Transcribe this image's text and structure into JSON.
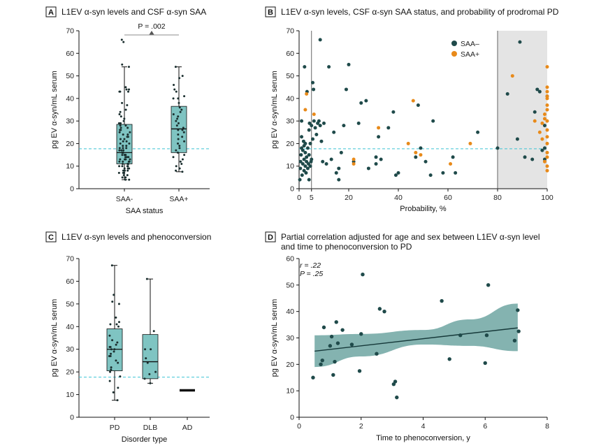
{
  "colors": {
    "box_fill": "#7fc4c2",
    "dark_dot": "#1f4a4a",
    "orange_dot": "#e88a1a",
    "threshold_line": "#3cc4d4",
    "shade": "#e4e4e4",
    "ci_band": "#6fa6a2"
  },
  "panels": [
    {
      "letter": "A",
      "title": "L1EV α-syn levels and CSF α-syn SAA"
    },
    {
      "letter": "B",
      "title": "L1EV α-syn levels, CSF α-syn SAA status, and probability of prodromal PD"
    },
    {
      "letter": "C",
      "title": "L1EV α-syn levels and phenoconversion"
    },
    {
      "letter": "D",
      "title_lines": [
        "Partial correlation adjusted for age and sex between L1EV α-syn level",
        "and time to phenoconversion to PD"
      ]
    }
  ],
  "chart_data": [
    {
      "id": "A",
      "type": "box",
      "title": "L1EV α-syn levels and CSF α-syn SAA",
      "xlabel": "SAA status",
      "ylabel": "pg EV α-syn/mL serum",
      "ylim": [
        0,
        70
      ],
      "yticks": [
        0,
        10,
        20,
        30,
        40,
        50,
        60,
        70
      ],
      "threshold": 17.7,
      "p_label": "P = .002",
      "categories": [
        "SAA-",
        "SAA+"
      ],
      "boxes": [
        {
          "category": "SAA-",
          "min": 4,
          "q1": 11,
          "median": 16,
          "q3": 28.5,
          "max": 54
        },
        {
          "category": "SAA+",
          "min": 7.5,
          "q1": 16,
          "median": 26.5,
          "q3": 36.5,
          "max": 54
        }
      ],
      "points": [
        {
          "category": "SAA-",
          "values": [
            66,
            65,
            55,
            54,
            45,
            44,
            44,
            43,
            43,
            43,
            38,
            37,
            35,
            34,
            33,
            32,
            31,
            30,
            29,
            29,
            28,
            28,
            27,
            27,
            26,
            26,
            25,
            25,
            24,
            24,
            23,
            23,
            22,
            22,
            21,
            21,
            20,
            20,
            19,
            19,
            18,
            18,
            18,
            17,
            17,
            17,
            16,
            16,
            16,
            15,
            15,
            15,
            15,
            14,
            14,
            14,
            13,
            13,
            13,
            13,
            12,
            12,
            12,
            12,
            11,
            11,
            11,
            11,
            10,
            10,
            10,
            10,
            9,
            9,
            9,
            8,
            8,
            8,
            7,
            7,
            7,
            6,
            6,
            5,
            5,
            4,
            4
          ]
        },
        {
          "category": "SAA+",
          "values": [
            54,
            50,
            49,
            46,
            44,
            43,
            41,
            40,
            40,
            38,
            36,
            35,
            34,
            33,
            32,
            31,
            30,
            29,
            28,
            27,
            26,
            26,
            25,
            24,
            23,
            22,
            21,
            20,
            19,
            18,
            17,
            16,
            15,
            14,
            13,
            12,
            11,
            10,
            9,
            8,
            7.5
          ]
        }
      ]
    },
    {
      "id": "B",
      "type": "scatter",
      "title": "L1EV α-syn levels, CSF α-syn SAA status, and probability of prodromal PD",
      "xlabel": "Probability, %",
      "ylabel": "pg EV α-syn/mL serum",
      "xlim": [
        0,
        100
      ],
      "ylim": [
        0,
        70
      ],
      "xticks": [
        0,
        5,
        20,
        40,
        60,
        80,
        100
      ],
      "yticks": [
        0,
        10,
        20,
        30,
        40,
        50,
        60,
        70
      ],
      "vlines": [
        5,
        80
      ],
      "shaded_range": [
        80,
        100
      ],
      "threshold": 17.7,
      "legend": [
        {
          "name": "SAA–",
          "color": "#1f4a4a"
        },
        {
          "name": "SAA+",
          "color": "#e88a1a"
        }
      ],
      "series": [
        {
          "name": "SAA–",
          "points": [
            [
              0.3,
              4
            ],
            [
              0.5,
              9
            ],
            [
              0.6,
              12
            ],
            [
              0.8,
              15
            ],
            [
              1,
              18
            ],
            [
              1,
              23
            ],
            [
              1,
              30
            ],
            [
              1.2,
              6
            ],
            [
              1.5,
              11
            ],
            [
              1.5,
              17
            ],
            [
              1.8,
              21
            ],
            [
              2,
              8
            ],
            [
              2,
              13
            ],
            [
              2,
              19
            ],
            [
              2.2,
              54
            ],
            [
              2.5,
              10
            ],
            [
              2.5,
              16
            ],
            [
              2.5,
              20
            ],
            [
              2.8,
              7
            ],
            [
              3,
              12
            ],
            [
              3,
              14
            ],
            [
              3.2,
              43
            ],
            [
              3.5,
              9
            ],
            [
              3.5,
              18
            ],
            [
              3.8,
              11
            ],
            [
              4,
              26
            ],
            [
              4,
              15
            ],
            [
              4,
              4
            ],
            [
              4.2,
              29
            ],
            [
              4.5,
              10
            ],
            [
              4.5,
              20
            ],
            [
              4.8,
              12
            ],
            [
              5,
              13
            ],
            [
              5,
              28
            ],
            [
              5.5,
              22
            ],
            [
              5.5,
              47
            ],
            [
              5.8,
              44
            ],
            [
              6,
              30
            ],
            [
              6.5,
              27
            ],
            [
              7,
              24
            ],
            [
              7.5,
              29
            ],
            [
              8,
              30
            ],
            [
              8.5,
              28
            ],
            [
              8.5,
              66
            ],
            [
              9,
              21
            ],
            [
              9.5,
              12
            ],
            [
              10,
              29
            ],
            [
              11,
              11
            ],
            [
              12,
              54
            ],
            [
              13,
              13
            ],
            [
              14,
              25
            ],
            [
              15,
              7
            ],
            [
              16,
              4
            ],
            [
              16,
              9
            ],
            [
              17,
              16
            ],
            [
              18,
              28
            ],
            [
              19,
              44
            ],
            [
              20,
              55
            ],
            [
              22,
              12
            ],
            [
              24,
              29
            ],
            [
              25,
              38
            ],
            [
              27,
              39
            ],
            [
              28,
              9
            ],
            [
              31,
              14
            ],
            [
              31,
              11
            ],
            [
              32,
              23
            ],
            [
              33,
              13
            ],
            [
              36,
              27
            ],
            [
              38,
              34
            ],
            [
              39,
              6
            ],
            [
              40,
              7
            ],
            [
              47,
              14
            ],
            [
              48,
              37
            ],
            [
              49,
              18
            ],
            [
              51,
              12
            ],
            [
              53,
              6
            ],
            [
              54,
              30
            ],
            [
              58,
              7
            ],
            [
              62,
              14
            ],
            [
              63,
              7
            ],
            [
              72,
              25
            ],
            [
              80,
              18
            ],
            [
              84,
              42
            ],
            [
              88,
              22
            ],
            [
              89,
              65
            ],
            [
              91,
              14
            ],
            [
              94,
              13
            ],
            [
              95,
              34
            ],
            [
              96,
              44
            ],
            [
              97,
              43
            ],
            [
              98,
              17
            ],
            [
              99,
              13
            ],
            [
              99,
              18
            ],
            [
              99,
              28
            ],
            [
              100,
              41
            ]
          ]
        },
        {
          "name": "SAA+",
          "points": [
            [
              2.5,
              35
            ],
            [
              3,
              42
            ],
            [
              6,
              33
            ],
            [
              22,
              13
            ],
            [
              22,
              11
            ],
            [
              32,
              27
            ],
            [
              44,
              20
            ],
            [
              46,
              39
            ],
            [
              47,
              16
            ],
            [
              49,
              15
            ],
            [
              61,
              11
            ],
            [
              69,
              20
            ],
            [
              86,
              50
            ],
            [
              95,
              30
            ],
            [
              97,
              25
            ],
            [
              98,
              22
            ],
            [
              98,
              29
            ],
            [
              99,
              12
            ],
            [
              99,
              31
            ],
            [
              99,
              33
            ],
            [
              100,
              8
            ],
            [
              100,
              10
            ],
            [
              100,
              14
            ],
            [
              100,
              16
            ],
            [
              100,
              20
            ],
            [
              100,
              23
            ],
            [
              100,
              26
            ],
            [
              100,
              30
            ],
            [
              100,
              35
            ],
            [
              100,
              37
            ],
            [
              100,
              40
            ],
            [
              100,
              41
            ],
            [
              100,
              43
            ],
            [
              100,
              45
            ],
            [
              100,
              54
            ]
          ]
        }
      ]
    },
    {
      "id": "C",
      "type": "box",
      "title": "L1EV α-syn levels and phenoconversion",
      "xlabel": "Disorder type",
      "ylabel": "pg EV α-syn/mL serum",
      "ylim": [
        0,
        70
      ],
      "yticks": [
        0,
        10,
        20,
        30,
        40,
        50,
        60,
        70
      ],
      "threshold": 17.7,
      "categories": [
        "PD",
        "DLB",
        "AD"
      ],
      "boxes": [
        {
          "category": "PD",
          "min": 7.5,
          "q1": 20.5,
          "median": 30,
          "q3": 39,
          "max": 67
        },
        {
          "category": "DLB",
          "min": 15,
          "q1": 17,
          "median": 24.5,
          "q3": 36.5,
          "max": 61
        },
        {
          "category": "AD",
          "min": 11.8,
          "q1": 11.8,
          "median": 11.8,
          "q3": 11.8,
          "max": 11.8
        }
      ],
      "points": [
        {
          "category": "PD",
          "values": [
            67,
            54,
            51,
            50,
            44,
            42,
            41,
            41,
            40,
            36,
            34,
            33,
            32,
            31,
            31,
            30,
            30,
            29,
            28,
            27,
            27,
            25,
            24,
            22,
            21,
            20,
            18,
            16,
            13,
            11,
            7.5
          ]
        },
        {
          "category": "DLB",
          "values": [
            61,
            38,
            30,
            30,
            26,
            24,
            20,
            19,
            17,
            15
          ]
        },
        {
          "category": "AD",
          "values": [
            11.8
          ]
        }
      ]
    },
    {
      "id": "D",
      "type": "scatter",
      "title": "Partial correlation adjusted for age and sex between L1EV α-syn level and time to phenoconversion to PD",
      "xlabel": "Time to phenoconversion, y",
      "ylabel": "pg EV α-syn/mL serum",
      "xlim": [
        0,
        8
      ],
      "ylim": [
        0,
        60
      ],
      "xticks": [
        0,
        2,
        4,
        6,
        8
      ],
      "yticks": [
        0,
        10,
        20,
        30,
        40,
        50,
        60
      ],
      "annotation": [
        "r = .22",
        "P = .25"
      ],
      "fit": {
        "x0": 0.5,
        "y0": 25,
        "x1": 7.05,
        "y1": 33.8
      },
      "ci_upper": [
        [
          0.5,
          31
        ],
        [
          2,
          31.5
        ],
        [
          4,
          33
        ],
        [
          5.5,
          37
        ],
        [
          7.05,
          43
        ]
      ],
      "ci_lower": [
        [
          0.5,
          19
        ],
        [
          2,
          23
        ],
        [
          4,
          27.5
        ],
        [
          5.5,
          27
        ],
        [
          7.05,
          25
        ]
      ],
      "points": [
        [
          0.45,
          15
        ],
        [
          0.7,
          20
        ],
        [
          0.75,
          21.5
        ],
        [
          0.8,
          34
        ],
        [
          1,
          27
        ],
        [
          1.05,
          30.5
        ],
        [
          1.1,
          16
        ],
        [
          1.15,
          21
        ],
        [
          1.2,
          36
        ],
        [
          1.25,
          28
        ],
        [
          1.4,
          33
        ],
        [
          1.7,
          27.5
        ],
        [
          1.95,
          17.5
        ],
        [
          2,
          31.5
        ],
        [
          2.05,
          54
        ],
        [
          2.5,
          24
        ],
        [
          2.6,
          41
        ],
        [
          2.75,
          40
        ],
        [
          3.05,
          12.5
        ],
        [
          3.1,
          13.5
        ],
        [
          3.15,
          7.5
        ],
        [
          4.6,
          44
        ],
        [
          4.85,
          22
        ],
        [
          5.2,
          31
        ],
        [
          6,
          20.5
        ],
        [
          6.05,
          31
        ],
        [
          6.1,
          50
        ],
        [
          6.95,
          29
        ],
        [
          7.05,
          40.5
        ],
        [
          7.08,
          32.5
        ]
      ]
    }
  ]
}
